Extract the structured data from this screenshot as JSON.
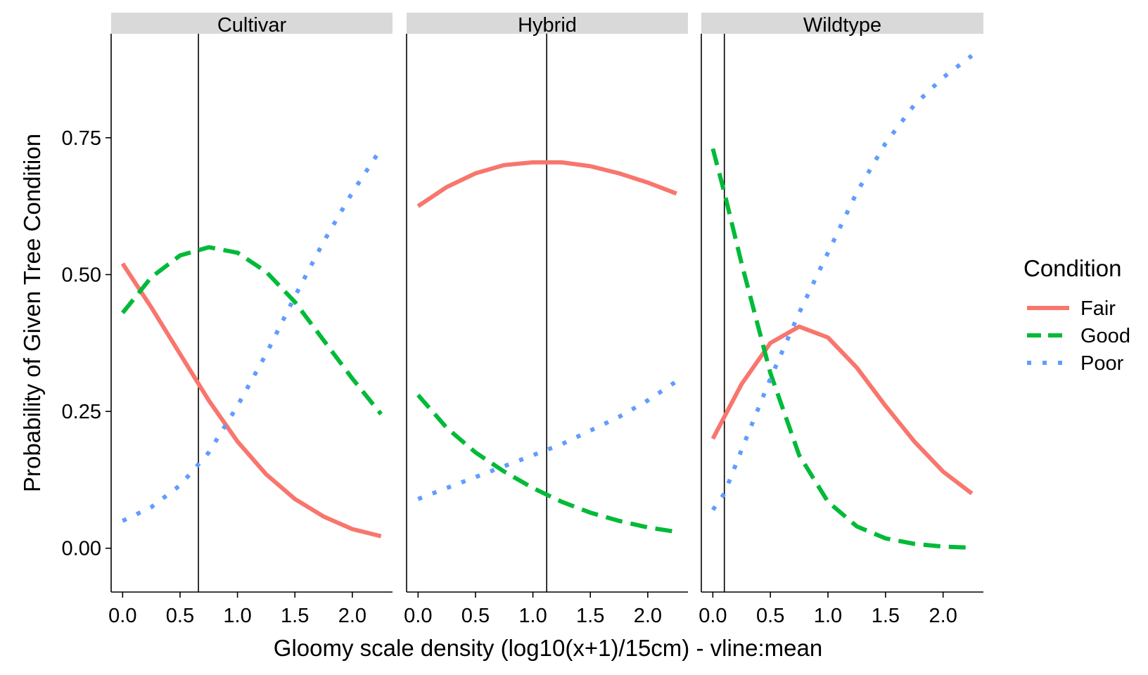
{
  "chart_data": {
    "type": "line",
    "ylabel": "Probability of Given Tree Condition",
    "xlabel": "Gloomy scale density (log10(x+1)/15cm) - vline:mean",
    "xlim": [
      -0.1,
      2.35
    ],
    "ylim": [
      -0.08,
      0.94
    ],
    "x_ticks": [
      0.0,
      0.5,
      1.0,
      1.5,
      2.0
    ],
    "x_tick_labels": [
      "0.0",
      "0.5",
      "1.0",
      "1.5",
      "2.0"
    ],
    "y_ticks": [
      0.0,
      0.25,
      0.5,
      0.75
    ],
    "y_tick_labels": [
      "0.00",
      "0.25",
      "0.50",
      "0.75"
    ],
    "legend": {
      "title": "Condition",
      "position": "right",
      "items": [
        {
          "label": "Fair",
          "color": "#F8766D",
          "linestyle": "solid"
        },
        {
          "label": "Good",
          "color": "#00BA38",
          "linestyle": "dashed"
        },
        {
          "label": "Poor",
          "color": "#619CFF",
          "linestyle": "dotted"
        }
      ]
    },
    "panels": [
      {
        "title": "Cultivar",
        "vline": 0.66,
        "series": [
          {
            "name": "Fair",
            "x": [
              0.0,
              0.25,
              0.5,
              0.75,
              1.0,
              1.25,
              1.5,
              1.75,
              2.0,
              2.25
            ],
            "values": [
              0.52,
              0.44,
              0.355,
              0.27,
              0.195,
              0.135,
              0.09,
              0.058,
              0.035,
              0.022
            ]
          },
          {
            "name": "Good",
            "x": [
              0.0,
              0.25,
              0.5,
              0.75,
              1.0,
              1.25,
              1.5,
              1.75,
              2.0,
              2.25
            ],
            "values": [
              0.43,
              0.495,
              0.535,
              0.55,
              0.54,
              0.505,
              0.45,
              0.38,
              0.31,
              0.245
            ]
          },
          {
            "name": "Poor",
            "x": [
              0.0,
              0.25,
              0.5,
              0.75,
              1.0,
              1.25,
              1.5,
              1.75,
              2.0,
              2.25
            ],
            "values": [
              0.05,
              0.075,
              0.115,
              0.175,
              0.26,
              0.355,
              0.46,
              0.56,
              0.65,
              0.73
            ]
          }
        ]
      },
      {
        "title": "Hybrid",
        "vline": 1.12,
        "series": [
          {
            "name": "Fair",
            "x": [
              0.0,
              0.25,
              0.5,
              0.75,
              1.0,
              1.25,
              1.5,
              1.75,
              2.0,
              2.25
            ],
            "values": [
              0.625,
              0.66,
              0.685,
              0.7,
              0.705,
              0.705,
              0.698,
              0.685,
              0.668,
              0.648
            ]
          },
          {
            "name": "Good",
            "x": [
              0.0,
              0.25,
              0.5,
              0.75,
              1.0,
              1.25,
              1.5,
              1.75,
              2.0,
              2.25
            ],
            "values": [
              0.28,
              0.22,
              0.175,
              0.14,
              0.11,
              0.085,
              0.065,
              0.05,
              0.038,
              0.03
            ]
          },
          {
            "name": "Poor",
            "x": [
              0.0,
              0.25,
              0.5,
              0.75,
              1.0,
              1.25,
              1.5,
              1.75,
              2.0,
              2.25
            ],
            "values": [
              0.09,
              0.11,
              0.13,
              0.15,
              0.17,
              0.19,
              0.215,
              0.24,
              0.27,
              0.305
            ]
          }
        ]
      },
      {
        "title": "Wildtype",
        "vline": 0.1,
        "series": [
          {
            "name": "Fair",
            "x": [
              0.0,
              0.1,
              0.25,
              0.5,
              0.75,
              1.0,
              1.25,
              1.5,
              1.75,
              2.0,
              2.25
            ],
            "values": [
              0.2,
              0.24,
              0.3,
              0.375,
              0.405,
              0.385,
              0.33,
              0.26,
              0.195,
              0.14,
              0.1
            ]
          },
          {
            "name": "Good",
            "x": [
              0.0,
              0.1,
              0.25,
              0.5,
              0.75,
              1.0,
              1.25,
              1.5,
              1.75,
              2.0,
              2.25
            ],
            "values": [
              0.73,
              0.65,
              0.52,
              0.32,
              0.17,
              0.085,
              0.04,
              0.018,
              0.008,
              0.003,
              0.001
            ]
          },
          {
            "name": "Poor",
            "x": [
              0.0,
              0.1,
              0.25,
              0.5,
              0.75,
              1.0,
              1.25,
              1.5,
              1.75,
              2.0,
              2.25
            ],
            "values": [
              0.07,
              0.1,
              0.18,
              0.31,
              0.43,
              0.54,
              0.65,
              0.74,
              0.81,
              0.86,
              0.9
            ]
          }
        ]
      }
    ]
  }
}
